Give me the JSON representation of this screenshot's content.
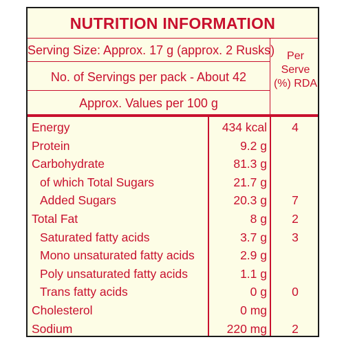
{
  "label": {
    "title": "NUTRITION INFORMATION",
    "serving_size": "Serving Size: Approx. 17 g (approx. 2 Rusks)",
    "servings_per_pack": "No. of Servings per pack - About 42",
    "values_basis": "Approx. Values per 100 g",
    "per_serve_header": [
      "Per",
      "Serve",
      "(%) RDA"
    ],
    "accent_color": "#c8102e",
    "background_color": "#fdfde6",
    "nutrients": [
      {
        "name": "Energy",
        "amount": "434 kcal",
        "rda": "4",
        "indent": false
      },
      {
        "name": "Protein",
        "amount": "9.2 g",
        "rda": "",
        "indent": false
      },
      {
        "name": "Carbohydrate",
        "amount": "81.3 g",
        "rda": "",
        "indent": false
      },
      {
        "name": "of which Total Sugars",
        "amount": "21.7 g",
        "rda": "",
        "indent": true
      },
      {
        "name": "Added Sugars",
        "amount": "20.3 g",
        "rda": "7",
        "indent": true
      },
      {
        "name": "Total Fat",
        "amount": "8 g",
        "rda": "2",
        "indent": false
      },
      {
        "name": "Saturated fatty acids",
        "amount": "3.7 g",
        "rda": "3",
        "indent": true
      },
      {
        "name": "Mono unsaturated fatty acids",
        "amount": "2.9 g",
        "rda": "",
        "indent": true
      },
      {
        "name": "Poly unsaturated fatty acids",
        "amount": "1.1 g",
        "rda": "",
        "indent": true
      },
      {
        "name": "Trans fatty acids",
        "amount": "0 g",
        "rda": "0",
        "indent": true
      },
      {
        "name": "Cholesterol",
        "amount": "0 mg",
        "rda": "",
        "indent": false
      },
      {
        "name": "Sodium",
        "amount": "220 mg",
        "rda": "2",
        "indent": false
      }
    ]
  }
}
